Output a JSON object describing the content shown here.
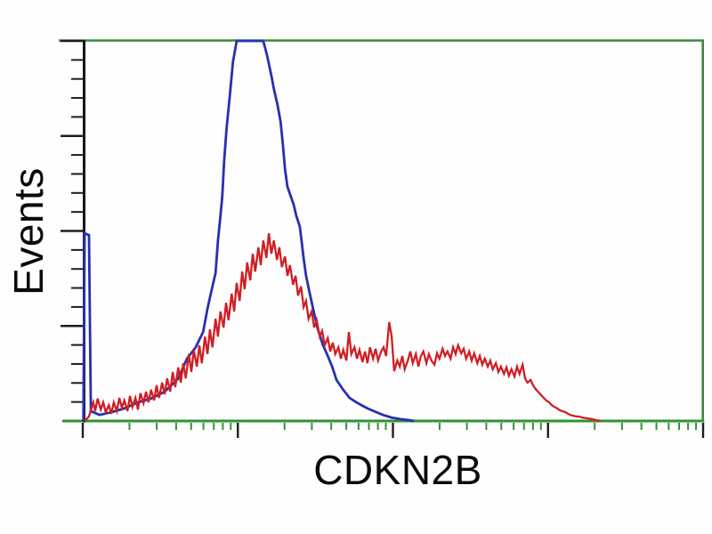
{
  "labels": {
    "y_axis": "Events",
    "x_axis": "CDKN2B"
  },
  "figure": {
    "background": "#fefefe",
    "frame_color": "#3a8a3c",
    "x_axis_color": "#2e9430",
    "y_axis_color": "#161616",
    "major_tick_color": "#1d1d1d",
    "x_minor_tick_color": "#2e9430",
    "label_color": "#0a0a0a"
  },
  "chart_data": {
    "type": "line",
    "subtype": "flow-cytometry-histogram-overlay",
    "title": "",
    "xlabel": "CDKN2B",
    "ylabel": "Events",
    "x_scale": "log",
    "x_decades": 4,
    "x_axis_numeric_labels_visible": false,
    "y_scale": "linear",
    "y_axis_numeric_labels_visible": false,
    "y_major_divisions": 4,
    "y_minor_per_major": 5,
    "grid": false,
    "legend": "none",
    "x_unit": "fraction of 4-decade log axis (0-1)",
    "y_unit": "fraction of y-axis maximum (0-1)",
    "series": [
      {
        "name": "blue-histogram",
        "color": "#2531b0",
        "points": [
          [
            0.001,
            0.0
          ],
          [
            0.003,
            0.494
          ],
          [
            0.01,
            0.489
          ],
          [
            0.013,
            0.026
          ],
          [
            0.027,
            0.016
          ],
          [
            0.046,
            0.023
          ],
          [
            0.067,
            0.033
          ],
          [
            0.089,
            0.049
          ],
          [
            0.11,
            0.059
          ],
          [
            0.132,
            0.077
          ],
          [
            0.154,
            0.112
          ],
          [
            0.168,
            0.164
          ],
          [
            0.182,
            0.194
          ],
          [
            0.194,
            0.234
          ],
          [
            0.201,
            0.295
          ],
          [
            0.208,
            0.347
          ],
          [
            0.214,
            0.389
          ],
          [
            0.218,
            0.475
          ],
          [
            0.222,
            0.539
          ],
          [
            0.225,
            0.593
          ],
          [
            0.228,
            0.686
          ],
          [
            0.232,
            0.773
          ],
          [
            0.237,
            0.855
          ],
          [
            0.242,
            0.944
          ],
          [
            0.248,
            1.0
          ],
          [
            0.291,
            1.0
          ],
          [
            0.297,
            0.963
          ],
          [
            0.304,
            0.909
          ],
          [
            0.308,
            0.874
          ],
          [
            0.314,
            0.831
          ],
          [
            0.319,
            0.787
          ],
          [
            0.323,
            0.721
          ],
          [
            0.326,
            0.663
          ],
          [
            0.33,
            0.616
          ],
          [
            0.336,
            0.588
          ],
          [
            0.34,
            0.569
          ],
          [
            0.344,
            0.541
          ],
          [
            0.35,
            0.511
          ],
          [
            0.353,
            0.471
          ],
          [
            0.356,
            0.429
          ],
          [
            0.36,
            0.382
          ],
          [
            0.366,
            0.335
          ],
          [
            0.373,
            0.283
          ],
          [
            0.379,
            0.241
          ],
          [
            0.387,
            0.201
          ],
          [
            0.395,
            0.171
          ],
          [
            0.402,
            0.143
          ],
          [
            0.409,
            0.108
          ],
          [
            0.419,
            0.084
          ],
          [
            0.43,
            0.061
          ],
          [
            0.441,
            0.049
          ],
          [
            0.451,
            0.04
          ],
          [
            0.459,
            0.033
          ],
          [
            0.469,
            0.026
          ],
          [
            0.484,
            0.016
          ],
          [
            0.498,
            0.009
          ],
          [
            0.512,
            0.005
          ],
          [
            0.527,
            0.002
          ],
          [
            0.534,
            0.0
          ]
        ]
      },
      {
        "name": "red-histogram",
        "color": "#cf1f24",
        "points": [
          [
            0.003,
            0.0
          ],
          [
            0.01,
            0.012
          ],
          [
            0.017,
            0.049
          ],
          [
            0.02,
            0.026
          ],
          [
            0.024,
            0.059
          ],
          [
            0.029,
            0.03
          ],
          [
            0.033,
            0.049
          ],
          [
            0.037,
            0.023
          ],
          [
            0.042,
            0.042
          ],
          [
            0.046,
            0.019
          ],
          [
            0.05,
            0.049
          ],
          [
            0.055,
            0.026
          ],
          [
            0.059,
            0.061
          ],
          [
            0.063,
            0.035
          ],
          [
            0.067,
            0.054
          ],
          [
            0.072,
            0.026
          ],
          [
            0.076,
            0.066
          ],
          [
            0.08,
            0.037
          ],
          [
            0.085,
            0.061
          ],
          [
            0.089,
            0.03
          ],
          [
            0.093,
            0.073
          ],
          [
            0.098,
            0.047
          ],
          [
            0.102,
            0.077
          ],
          [
            0.106,
            0.049
          ],
          [
            0.11,
            0.082
          ],
          [
            0.115,
            0.054
          ],
          [
            0.119,
            0.094
          ],
          [
            0.123,
            0.061
          ],
          [
            0.128,
            0.101
          ],
          [
            0.132,
            0.07
          ],
          [
            0.136,
            0.112
          ],
          [
            0.141,
            0.077
          ],
          [
            0.145,
            0.129
          ],
          [
            0.149,
            0.089
          ],
          [
            0.154,
            0.141
          ],
          [
            0.158,
            0.101
          ],
          [
            0.162,
            0.152
          ],
          [
            0.166,
            0.112
          ],
          [
            0.171,
            0.176
          ],
          [
            0.175,
            0.129
          ],
          [
            0.179,
            0.187
          ],
          [
            0.184,
            0.143
          ],
          [
            0.188,
            0.199
          ],
          [
            0.192,
            0.152
          ],
          [
            0.197,
            0.222
          ],
          [
            0.201,
            0.176
          ],
          [
            0.205,
            0.241
          ],
          [
            0.209,
            0.194
          ],
          [
            0.214,
            0.269
          ],
          [
            0.218,
            0.222
          ],
          [
            0.222,
            0.288
          ],
          [
            0.227,
            0.246
          ],
          [
            0.231,
            0.311
          ],
          [
            0.235,
            0.265
          ],
          [
            0.24,
            0.335
          ],
          [
            0.244,
            0.288
          ],
          [
            0.248,
            0.363
          ],
          [
            0.253,
            0.316
          ],
          [
            0.257,
            0.393
          ],
          [
            0.261,
            0.347
          ],
          [
            0.265,
            0.417
          ],
          [
            0.27,
            0.37
          ],
          [
            0.274,
            0.44
          ],
          [
            0.278,
            0.393
          ],
          [
            0.283,
            0.457
          ],
          [
            0.287,
            0.41
          ],
          [
            0.291,
            0.475
          ],
          [
            0.296,
            0.429
          ],
          [
            0.3,
            0.494
          ],
          [
            0.304,
            0.44
          ],
          [
            0.308,
            0.475
          ],
          [
            0.313,
            0.424
          ],
          [
            0.317,
            0.457
          ],
          [
            0.321,
            0.405
          ],
          [
            0.326,
            0.433
          ],
          [
            0.33,
            0.382
          ],
          [
            0.334,
            0.41
          ],
          [
            0.339,
            0.358
          ],
          [
            0.343,
            0.382
          ],
          [
            0.347,
            0.33
          ],
          [
            0.352,
            0.354
          ],
          [
            0.356,
            0.3
          ],
          [
            0.36,
            0.316
          ],
          [
            0.364,
            0.269
          ],
          [
            0.369,
            0.288
          ],
          [
            0.373,
            0.246
          ],
          [
            0.377,
            0.265
          ],
          [
            0.382,
            0.222
          ],
          [
            0.386,
            0.237
          ],
          [
            0.39,
            0.199
          ],
          [
            0.395,
            0.218
          ],
          [
            0.399,
            0.183
          ],
          [
            0.403,
            0.206
          ],
          [
            0.407,
            0.176
          ],
          [
            0.412,
            0.194
          ],
          [
            0.416,
            0.164
          ],
          [
            0.42,
            0.187
          ],
          [
            0.425,
            0.159
          ],
          [
            0.429,
            0.234
          ],
          [
            0.433,
            0.176
          ],
          [
            0.438,
            0.194
          ],
          [
            0.442,
            0.164
          ],
          [
            0.446,
            0.187
          ],
          [
            0.451,
            0.155
          ],
          [
            0.455,
            0.183
          ],
          [
            0.459,
            0.152
          ],
          [
            0.463,
            0.194
          ],
          [
            0.468,
            0.164
          ],
          [
            0.472,
            0.19
          ],
          [
            0.476,
            0.159
          ],
          [
            0.481,
            0.183
          ],
          [
            0.485,
            0.194
          ],
          [
            0.489,
            0.171
          ],
          [
            0.494,
            0.26
          ],
          [
            0.498,
            0.222
          ],
          [
            0.502,
            0.131
          ],
          [
            0.507,
            0.159
          ],
          [
            0.511,
            0.143
          ],
          [
            0.515,
            0.171
          ],
          [
            0.519,
            0.136
          ],
          [
            0.524,
            0.159
          ],
          [
            0.528,
            0.183
          ],
          [
            0.532,
            0.152
          ],
          [
            0.537,
            0.176
          ],
          [
            0.541,
            0.143
          ],
          [
            0.545,
            0.171
          ],
          [
            0.549,
            0.183
          ],
          [
            0.554,
            0.152
          ],
          [
            0.558,
            0.176
          ],
          [
            0.562,
            0.159
          ],
          [
            0.567,
            0.148
          ],
          [
            0.571,
            0.178
          ],
          [
            0.575,
            0.164
          ],
          [
            0.58,
            0.19
          ],
          [
            0.584,
            0.171
          ],
          [
            0.588,
            0.183
          ],
          [
            0.593,
            0.164
          ],
          [
            0.597,
            0.194
          ],
          [
            0.601,
            0.176
          ],
          [
            0.605,
            0.199
          ],
          [
            0.61,
            0.178
          ],
          [
            0.614,
            0.19
          ],
          [
            0.618,
            0.164
          ],
          [
            0.623,
            0.183
          ],
          [
            0.627,
            0.159
          ],
          [
            0.631,
            0.178
          ],
          [
            0.636,
            0.152
          ],
          [
            0.64,
            0.171
          ],
          [
            0.644,
            0.148
          ],
          [
            0.648,
            0.164
          ],
          [
            0.653,
            0.143
          ],
          [
            0.657,
            0.159
          ],
          [
            0.661,
            0.136
          ],
          [
            0.666,
            0.152
          ],
          [
            0.67,
            0.129
          ],
          [
            0.674,
            0.143
          ],
          [
            0.679,
            0.124
          ],
          [
            0.683,
            0.141
          ],
          [
            0.687,
            0.119
          ],
          [
            0.691,
            0.136
          ],
          [
            0.696,
            0.117
          ],
          [
            0.7,
            0.143
          ],
          [
            0.704,
            0.124
          ],
          [
            0.709,
            0.148
          ],
          [
            0.713,
            0.112
          ],
          [
            0.717,
            0.101
          ],
          [
            0.722,
            0.108
          ],
          [
            0.726,
            0.094
          ],
          [
            0.73,
            0.084
          ],
          [
            0.734,
            0.077
          ],
          [
            0.739,
            0.068
          ],
          [
            0.743,
            0.061
          ],
          [
            0.747,
            0.054
          ],
          [
            0.752,
            0.049
          ],
          [
            0.756,
            0.042
          ],
          [
            0.76,
            0.037
          ],
          [
            0.765,
            0.033
          ],
          [
            0.769,
            0.028
          ],
          [
            0.773,
            0.026
          ],
          [
            0.778,
            0.023
          ],
          [
            0.782,
            0.019
          ],
          [
            0.786,
            0.016
          ],
          [
            0.79,
            0.014
          ],
          [
            0.795,
            0.012
          ],
          [
            0.799,
            0.012
          ],
          [
            0.806,
            0.009
          ],
          [
            0.813,
            0.007
          ],
          [
            0.821,
            0.005
          ],
          [
            0.828,
            0.002
          ],
          [
            0.835,
            0.0
          ]
        ]
      }
    ]
  }
}
